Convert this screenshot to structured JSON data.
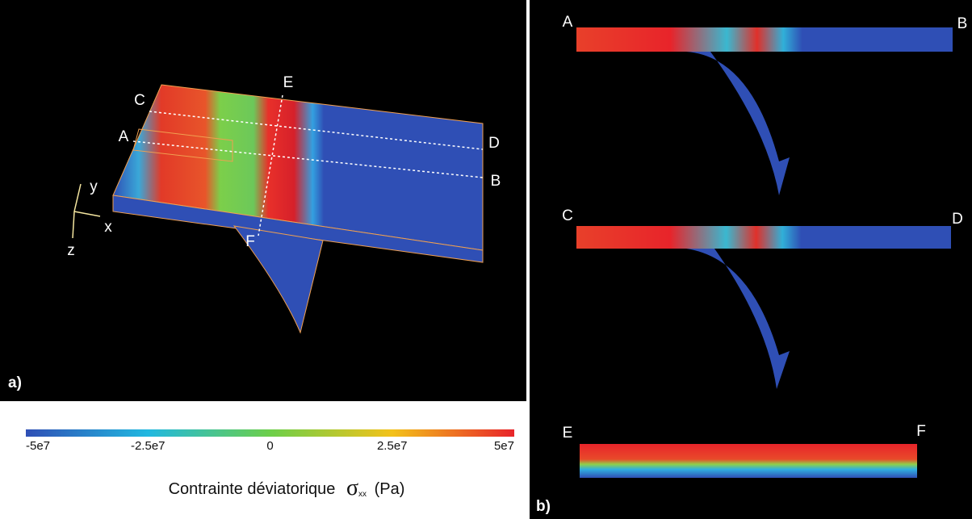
{
  "panel_a": {
    "label": "a)",
    "points": {
      "A": "A",
      "B": "B",
      "C": "C",
      "D": "D",
      "E": "E",
      "F": "F"
    },
    "axes": {
      "x": "x",
      "y": "y",
      "z": "z"
    }
  },
  "panel_b": {
    "label": "b)",
    "sections": [
      {
        "start": "A",
        "end": "B"
      },
      {
        "start": "C",
        "end": "D"
      },
      {
        "start": "E",
        "end": "F"
      }
    ]
  },
  "colorbar": {
    "ticks": [
      "-5e7",
      "-2.5e7",
      "0",
      "2.5e7",
      "5e7"
    ]
  },
  "caption": {
    "text": "Contrainte déviatorique",
    "symbol": "σ",
    "subscript": "xx",
    "unit": "(Pa)"
  }
}
